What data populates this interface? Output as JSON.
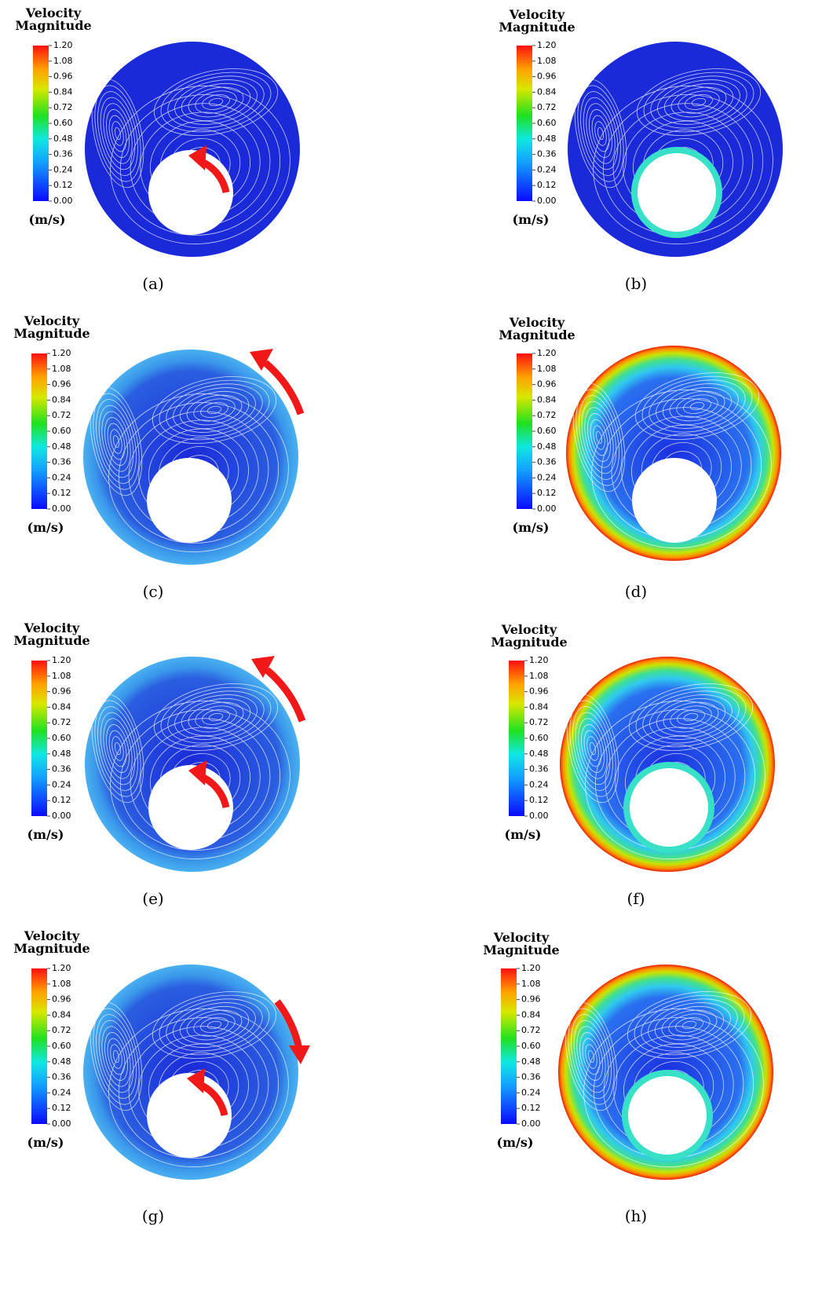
{
  "colorbar": {
    "title": [
      "Velocity",
      "Magnitude"
    ],
    "unit": "(m/s)",
    "ticks": [
      "1.20",
      "1.08",
      "0.96",
      "0.84",
      "0.72",
      "0.60",
      "0.48",
      "0.36",
      "0.24",
      "0.12",
      "0.00"
    ]
  },
  "panels": [
    {
      "caption": "(a)"
    },
    {
      "caption": "(b)"
    },
    {
      "caption": "(c)"
    },
    {
      "caption": "(d)"
    },
    {
      "caption": "(e)"
    },
    {
      "caption": "(f)"
    },
    {
      "caption": "(g)"
    },
    {
      "caption": "(h)"
    }
  ]
}
